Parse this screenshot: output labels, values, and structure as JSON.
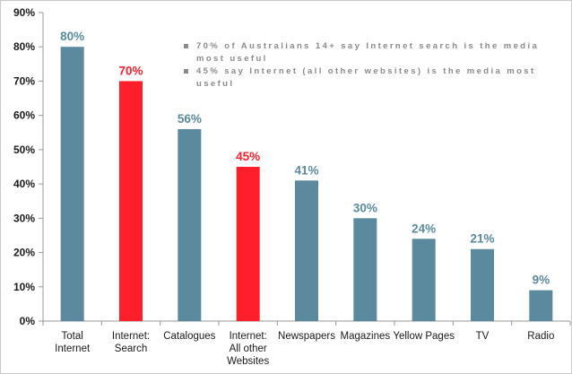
{
  "chart_data": {
    "type": "bar",
    "categories": [
      "Total Internet",
      "Internet: Search",
      "Catalogues",
      "Internet: All other Websites",
      "Newspapers",
      "Magazines",
      "Yellow Pages",
      "TV",
      "Radio"
    ],
    "category_lines": [
      [
        "Total",
        "Internet"
      ],
      [
        "Internet:",
        "Search"
      ],
      [
        "Catalogues"
      ],
      [
        "Internet:",
        "All other",
        "Websites"
      ],
      [
        "Newspapers"
      ],
      [
        "Magazines"
      ],
      [
        "Yellow Pages"
      ],
      [
        "TV"
      ],
      [
        "Radio"
      ]
    ],
    "values": [
      80,
      70,
      56,
      45,
      41,
      30,
      24,
      21,
      9
    ],
    "data_labels": [
      "80%",
      "70%",
      "56%",
      "45%",
      "41%",
      "30%",
      "24%",
      "21%",
      "9%"
    ],
    "highlighted": [
      false,
      true,
      false,
      true,
      false,
      false,
      false,
      false,
      false
    ],
    "ylim": [
      0,
      90
    ],
    "yticks": [
      0,
      10,
      20,
      30,
      40,
      50,
      60,
      70,
      80,
      90
    ],
    "ytick_labels": [
      "0%",
      "10%",
      "20%",
      "30%",
      "40%",
      "50%",
      "60%",
      "70%",
      "80%",
      "90%"
    ],
    "xlabel": "",
    "ylabel": "",
    "grid": false,
    "colors": {
      "bar": "#5b8a9e",
      "highlight": "#ff1f2a",
      "label": "#5b8a9e",
      "highlight_label": "#ff1f2a",
      "axis": "#999999"
    }
  },
  "notes": [
    "70% of Australians 14+ say Internet search is the media most useful",
    "45% say Internet (all other websites) is the media most useful"
  ]
}
